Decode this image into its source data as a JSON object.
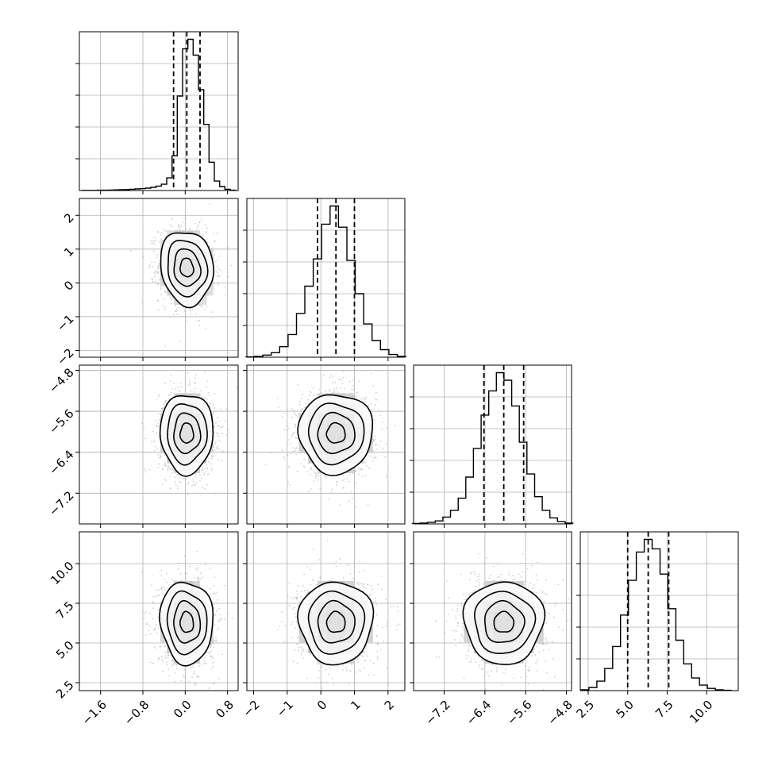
{
  "chart_data": {
    "type": "corner",
    "parameters": 4,
    "axes": [
      {
        "range": [
          -2.0,
          1.0
        ],
        "ticks": [
          -1.6,
          -0.8,
          0.0,
          0.8
        ],
        "tick_labels": [
          "−1.6",
          "−0.8",
          "0.0",
          "0.8"
        ],
        "quantiles": [
          -0.22,
          0.03,
          0.28
        ],
        "median": 0.03,
        "sigma": 0.25
      },
      {
        "range": [
          -2.2,
          2.5
        ],
        "ticks": [
          -2,
          -1,
          0,
          1,
          2
        ],
        "tick_labels": [
          "−2",
          "−1",
          "0",
          "1",
          "2"
        ],
        "quantiles": [
          -0.1,
          0.45,
          1.0
        ],
        "median": 0.45,
        "sigma": 0.55
      },
      {
        "range": [
          -7.8,
          -4.7
        ],
        "ticks": [
          -7.2,
          -6.4,
          -5.6,
          -4.8
        ],
        "tick_labels": [
          "−7.2",
          "−6.4",
          "−5.6",
          "−4.8"
        ],
        "quantiles": [
          -6.42,
          -6.03,
          -5.64
        ],
        "median": -6.03,
        "sigma": 0.39
      },
      {
        "range": [
          2.0,
          12.0
        ],
        "ticks": [
          2.5,
          5.0,
          7.5,
          10.0
        ],
        "tick_labels": [
          "2.5",
          "5.0",
          "7.5",
          "10.0"
        ],
        "quantiles": [
          5.0,
          6.3,
          7.6
        ],
        "median": 6.3,
        "sigma": 1.3
      }
    ],
    "histograms": [
      {
        "param": 0,
        "bins": [
          -1.9,
          -1.8,
          -1.7,
          -1.6,
          -1.5,
          -1.4,
          -1.3,
          -1.2,
          -1.1,
          -1.0,
          -0.9,
          -0.8,
          -0.7,
          -0.6,
          -0.5,
          -0.4,
          -0.3,
          -0.2,
          -0.1,
          0.0,
          0.1,
          0.2,
          0.3,
          0.4,
          0.5,
          0.6,
          0.7,
          0.8,
          0.9
        ],
        "counts": [
          1,
          1,
          1,
          2,
          2,
          3,
          4,
          5,
          6,
          8,
          10,
          12,
          15,
          20,
          28,
          40,
          80,
          220,
          600,
          900,
          960,
          860,
          640,
          420,
          180,
          60,
          25,
          8,
          2
        ]
      },
      {
        "param": 1,
        "bins": [
          -2.1,
          -1.85,
          -1.6,
          -1.35,
          -1.1,
          -0.85,
          -0.6,
          -0.35,
          -0.1,
          0.15,
          0.4,
          0.65,
          0.9,
          1.15,
          1.4,
          1.65,
          1.9,
          2.15,
          2.4
        ],
        "counts": [
          2,
          6,
          14,
          30,
          70,
          150,
          290,
          470,
          650,
          880,
          1000,
          860,
          640,
          420,
          220,
          110,
          50,
          18,
          5
        ]
      },
      {
        "param": 2,
        "bins": [
          -7.75,
          -7.6,
          -7.45,
          -7.3,
          -7.15,
          -7.0,
          -6.85,
          -6.7,
          -6.55,
          -6.4,
          -6.25,
          -6.1,
          -5.95,
          -5.8,
          -5.65,
          -5.5,
          -5.35,
          -5.2,
          -5.05,
          -4.9,
          -4.75
        ],
        "counts": [
          3,
          5,
          10,
          20,
          45,
          90,
          170,
          310,
          500,
          720,
          880,
          1000,
          950,
          780,
          540,
          330,
          180,
          90,
          40,
          15,
          5
        ]
      },
      {
        "param": 3,
        "bins": [
          2.3,
          2.8,
          3.3,
          3.8,
          4.3,
          4.8,
          5.3,
          5.8,
          6.3,
          6.8,
          7.3,
          7.8,
          8.3,
          8.8,
          9.3,
          9.8,
          10.3,
          10.8,
          11.3
        ],
        "counts": [
          5,
          20,
          60,
          140,
          280,
          480,
          700,
          880,
          960,
          900,
          740,
          520,
          320,
          170,
          80,
          35,
          14,
          5,
          2
        ]
      }
    ],
    "pairs": [
      {
        "x": 0,
        "y": 1,
        "center": [
          0.03,
          0.45
        ],
        "rho": -0.1
      },
      {
        "x": 0,
        "y": 2,
        "center": [
          0.03,
          -6.03
        ],
        "rho": 0.0
      },
      {
        "x": 1,
        "y": 2,
        "center": [
          0.45,
          -6.03
        ],
        "rho": 0.0
      },
      {
        "x": 0,
        "y": 3,
        "center": [
          0.03,
          6.3
        ],
        "rho": -0.05
      },
      {
        "x": 1,
        "y": 3,
        "center": [
          0.45,
          6.3
        ],
        "rho": 0.0
      },
      {
        "x": 2,
        "y": 3,
        "center": [
          -6.03,
          6.3
        ],
        "rho": 0.0
      }
    ],
    "contour_levels_sigma": [
      0.5,
      1.0,
      1.5,
      2.0
    ],
    "grid": true,
    "colors": {
      "line": "#000000",
      "points": "#a8a8a8",
      "grid": "#b0b0b0",
      "background": "#ffffff"
    }
  }
}
